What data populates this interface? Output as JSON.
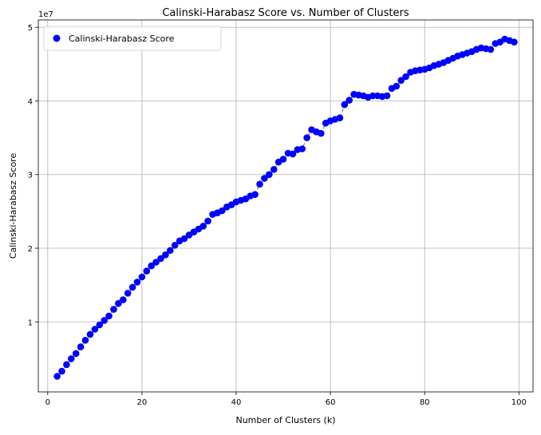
{
  "chart_data": {
    "type": "scatter",
    "title": "Calinski-Harabasz Score vs. Number of Clusters",
    "xlabel": "Number of Clusters (k)",
    "ylabel": "Calinski-Harabasz Score",
    "y_offset_label": "1e7",
    "xlim": [
      -2,
      103
    ],
    "ylim": [
      490000,
      51000000
    ],
    "x_ticks": [
      0,
      20,
      40,
      60,
      80,
      100
    ],
    "y_ticks": [
      10000000,
      20000000,
      30000000,
      40000000,
      50000000
    ],
    "y_tick_labels": [
      "1",
      "2",
      "3",
      "4",
      "5"
    ],
    "grid": true,
    "legend_position": "upper-left",
    "colors": {
      "point": "#0000ff",
      "line": "#808080",
      "grid": "#b0b0b0"
    },
    "series": [
      {
        "name": "Calinski-Harabasz Score",
        "x": [
          2,
          3,
          4,
          5,
          6,
          7,
          8,
          9,
          10,
          11,
          12,
          13,
          14,
          15,
          16,
          17,
          18,
          19,
          20,
          21,
          22,
          23,
          24,
          25,
          26,
          27,
          28,
          29,
          30,
          31,
          32,
          33,
          34,
          35,
          36,
          37,
          38,
          39,
          40,
          41,
          42,
          43,
          44,
          45,
          46,
          47,
          48,
          49,
          50,
          51,
          52,
          53,
          54,
          55,
          56,
          57,
          58,
          59,
          60,
          61,
          62,
          63,
          64,
          65,
          66,
          67,
          68,
          69,
          70,
          71,
          72,
          73,
          74,
          75,
          76,
          77,
          78,
          79,
          80,
          81,
          82,
          83,
          84,
          85,
          86,
          87,
          88,
          89,
          90,
          91,
          92,
          93,
          94,
          95,
          96,
          97,
          98,
          99
        ],
        "y": [
          2600000,
          3300000,
          4200000,
          5000000,
          5700000,
          6600000,
          7500000,
          8300000,
          9000000,
          9600000,
          10200000,
          10800000,
          11700000,
          12500000,
          13000000,
          13900000,
          14700000,
          15400000,
          16100000,
          16900000,
          17600000,
          18100000,
          18600000,
          19100000,
          19700000,
          20400000,
          21000000,
          21300000,
          21800000,
          22200000,
          22600000,
          23000000,
          23700000,
          24600000,
          24800000,
          25100000,
          25600000,
          25900000,
          26300000,
          26500000,
          26700000,
          27100000,
          27300000,
          28700000,
          29500000,
          30000000,
          30700000,
          31700000,
          32100000,
          32900000,
          32800000,
          33400000,
          33500000,
          35000000,
          36100000,
          35800000,
          35600000,
          37000000,
          37300000,
          37500000,
          37700000,
          39500000,
          40100000,
          40900000,
          40800000,
          40700000,
          40500000,
          40700000,
          40700000,
          40600000,
          40700000,
          41700000,
          42000000,
          42800000,
          43300000,
          43900000,
          44100000,
          44200000,
          44300000,
          44500000,
          44800000,
          45000000,
          45200000,
          45500000,
          45800000,
          46100000,
          46300000,
          46500000,
          46700000,
          47000000,
          47200000,
          47100000,
          47000000,
          47800000,
          48000000,
          48400000,
          48200000,
          48000000
        ]
      }
    ]
  }
}
